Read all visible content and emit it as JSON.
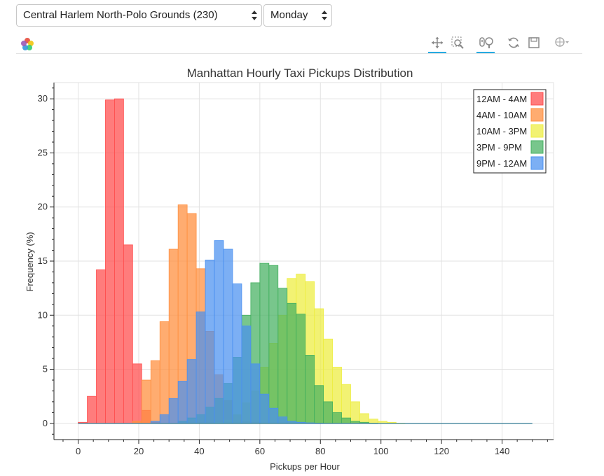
{
  "controls": {
    "zone_select": {
      "value": "Central Harlem North-Polo Grounds (230)"
    },
    "day_select": {
      "value": "Monday"
    }
  },
  "toolbar": {
    "tools": [
      "pan-icon",
      "box-zoom-icon",
      "wheel-zoom-icon",
      "reset-icon",
      "save-icon",
      "hover-icon"
    ]
  },
  "chart_data": {
    "type": "bar",
    "title": "Manhattan Hourly Taxi Pickups Distribution",
    "xlabel": "Pickups per Hour",
    "ylabel": "Frequency (%)",
    "xlim": [
      -8,
      157
    ],
    "ylim": [
      -1.5,
      31.5
    ],
    "xticks": [
      0,
      20,
      40,
      60,
      80,
      100,
      120,
      140
    ],
    "yticks": [
      0,
      5,
      10,
      15,
      20,
      25,
      30
    ],
    "bin_width": 3,
    "grid": true,
    "legend_position": "top-right",
    "series": [
      {
        "name": "12AM - 4AM",
        "color": "#ff5050",
        "opacity": 0.75,
        "bins": [
          [
            0,
            0.1
          ],
          [
            3,
            2.5
          ],
          [
            6,
            14.2
          ],
          [
            9,
            29.9
          ],
          [
            12,
            30
          ],
          [
            15,
            16.5
          ],
          [
            18,
            5.5
          ],
          [
            21,
            1.2
          ],
          [
            24,
            0.1
          ],
          [
            27,
            0
          ],
          [
            30,
            0
          ]
        ]
      },
      {
        "name": "4AM - 10AM",
        "color": "#ff9040",
        "opacity": 0.75,
        "bins": [
          [
            18,
            0.2
          ],
          [
            21,
            4
          ],
          [
            24,
            5.8
          ],
          [
            27,
            9.4
          ],
          [
            30,
            16.1
          ],
          [
            33,
            20.2
          ],
          [
            36,
            19.4
          ],
          [
            39,
            14.3
          ],
          [
            42,
            8.5
          ],
          [
            45,
            4.5
          ],
          [
            48,
            2.1
          ],
          [
            51,
            0.8
          ],
          [
            54,
            0.2
          ],
          [
            57,
            0.1
          ],
          [
            60,
            0
          ]
        ]
      },
      {
        "name": "10AM - 3PM",
        "color": "#eeee44",
        "opacity": 0.75,
        "bins": [
          [
            45,
            0.1
          ],
          [
            48,
            0.3
          ],
          [
            51,
            0.8
          ],
          [
            54,
            1.9
          ],
          [
            57,
            3
          ],
          [
            60,
            5.2
          ],
          [
            63,
            7.4
          ],
          [
            66,
            10
          ],
          [
            69,
            13.4
          ],
          [
            72,
            13.8
          ],
          [
            75,
            13.1
          ],
          [
            78,
            10.6
          ],
          [
            81,
            7.8
          ],
          [
            84,
            5.2
          ],
          [
            87,
            3.6
          ],
          [
            90,
            2
          ],
          [
            93,
            0.9
          ],
          [
            96,
            0.4
          ],
          [
            99,
            0.2
          ],
          [
            102,
            0.1
          ],
          [
            105,
            0
          ]
        ]
      },
      {
        "name": "3PM - 9PM",
        "color": "#44b060",
        "opacity": 0.72,
        "bins": [
          [
            33,
            0.2
          ],
          [
            36,
            0.5
          ],
          [
            39,
            0.8
          ],
          [
            42,
            1.5
          ],
          [
            45,
            2.3
          ],
          [
            48,
            3.7
          ],
          [
            51,
            6.1
          ],
          [
            54,
            10
          ],
          [
            57,
            13
          ],
          [
            60,
            14.8
          ],
          [
            63,
            14.6
          ],
          [
            66,
            12.5
          ],
          [
            69,
            11.1
          ],
          [
            72,
            10.1
          ],
          [
            75,
            6.3
          ],
          [
            78,
            3.5
          ],
          [
            81,
            2
          ],
          [
            84,
            1
          ],
          [
            87,
            0.5
          ],
          [
            90,
            0.2
          ],
          [
            93,
            0.1
          ],
          [
            96,
            0
          ]
        ]
      },
      {
        "name": "9PM - 12AM",
        "color": "#4a90f0",
        "opacity": 0.72,
        "bins": [
          [
            24,
            0.2
          ],
          [
            27,
            0.8
          ],
          [
            30,
            2.3
          ],
          [
            33,
            3.9
          ],
          [
            36,
            5.9
          ],
          [
            39,
            10.3
          ],
          [
            42,
            15.1
          ],
          [
            45,
            16.9
          ],
          [
            48,
            16.1
          ],
          [
            51,
            12.9
          ],
          [
            54,
            9
          ],
          [
            57,
            5.5
          ],
          [
            60,
            2.7
          ],
          [
            63,
            1.4
          ],
          [
            66,
            0.6
          ],
          [
            69,
            0.2
          ],
          [
            72,
            0.1
          ],
          [
            75,
            0.05
          ],
          [
            78,
            0
          ]
        ]
      }
    ],
    "baseline_range": [
      0,
      150
    ]
  }
}
